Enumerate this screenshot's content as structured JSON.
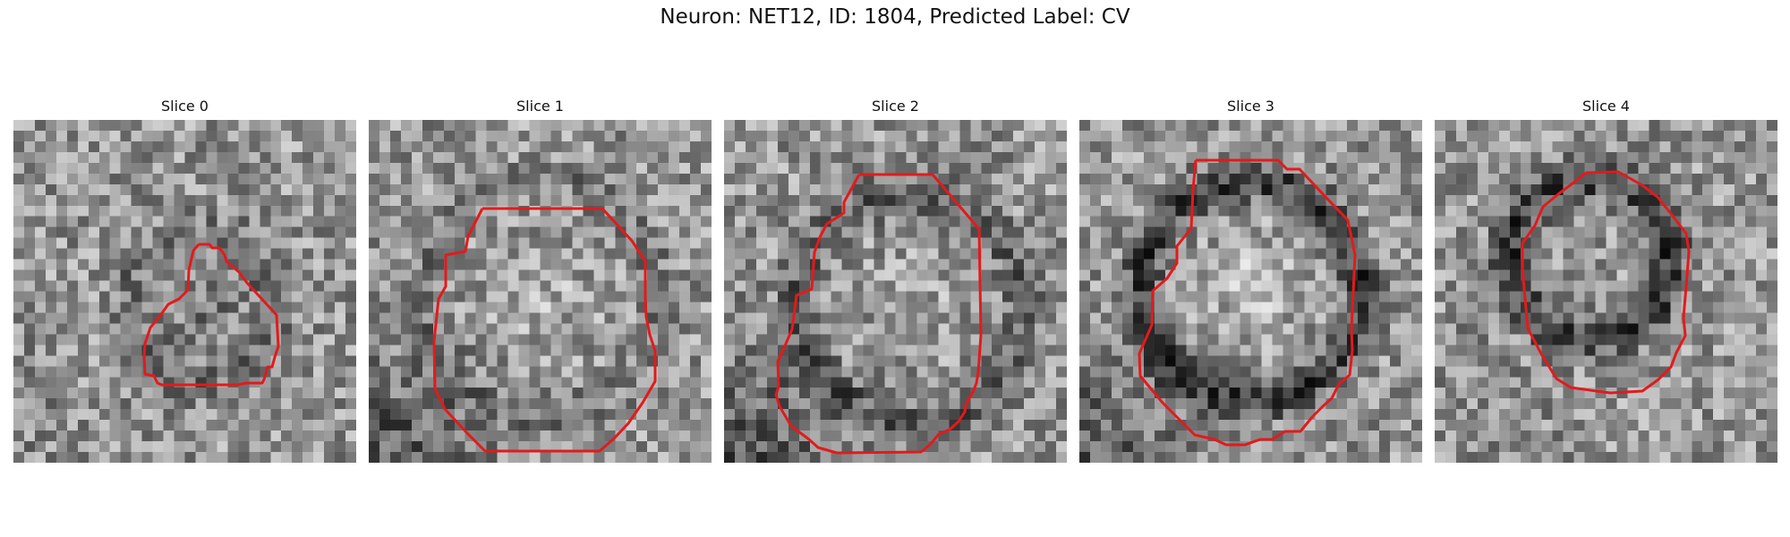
{
  "figure": {
    "title": "Neuron: NET12, ID: 1804, Predicted Label: CV"
  },
  "slices": [
    {
      "label": "Slice 0",
      "contour_shape": "small"
    },
    {
      "label": "Slice 1",
      "contour_shape": "large"
    },
    {
      "label": "Slice 2",
      "contour_shape": "tall"
    },
    {
      "label": "Slice 3",
      "contour_shape": "tall"
    },
    {
      "label": "Slice 4",
      "contour_shape": "medium"
    }
  ],
  "colors": {
    "contour": "#e31a1c",
    "background": "#ffffff"
  }
}
